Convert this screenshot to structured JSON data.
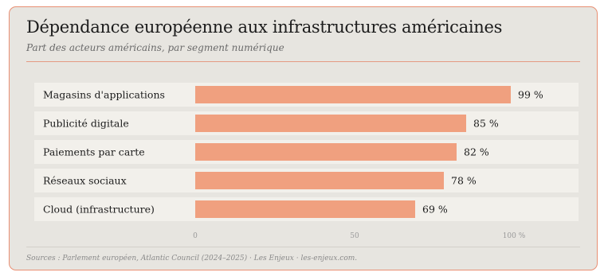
{
  "chart_data": {
    "type": "bar",
    "orientation": "horizontal",
    "title": "Dépendance européenne aux infrastructures américaines",
    "subtitle": "Part des acteurs américains, par segment numérique",
    "categories": [
      "Magasins d'applications",
      "Publicité digitale",
      "Paiements par carte",
      "Réseaux sociaux",
      "Cloud (infrastructure)"
    ],
    "values": [
      99,
      85,
      82,
      78,
      69
    ],
    "value_labels": [
      "99 %",
      "85 %",
      "82 %",
      "78 %",
      "69 %"
    ],
    "xlim": [
      0,
      100
    ],
    "xticks": [
      0,
      50,
      100
    ],
    "xtick_labels": [
      "0",
      "50",
      "100 %"
    ],
    "bar_color": "#f0a07f",
    "row_band_color": "#f2f0eb",
    "accent_color": "#e88f73",
    "grid": false,
    "legend": "none",
    "source": "Sources : Parlement européen, Atlantic Council (2024–2025) · Les Enjeux · les-enjeux.com."
  }
}
